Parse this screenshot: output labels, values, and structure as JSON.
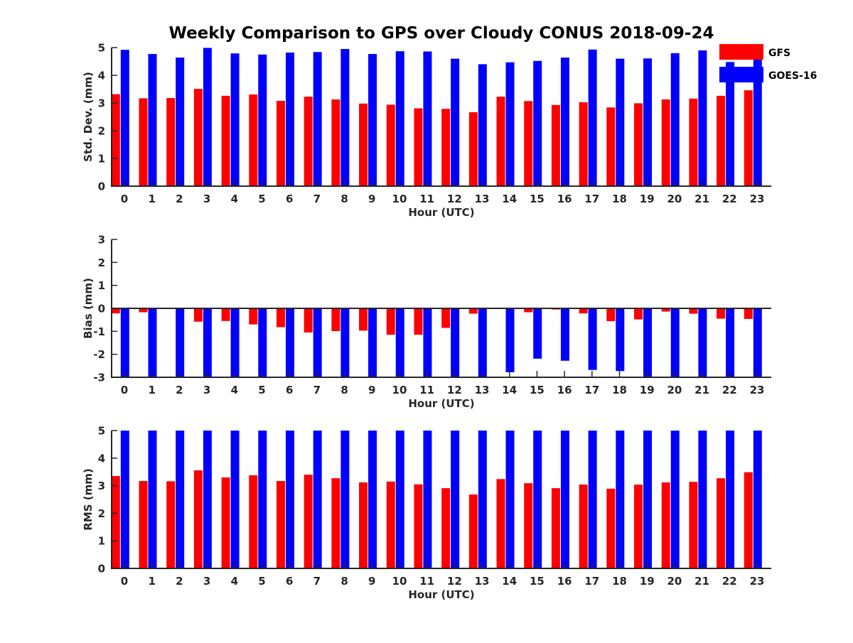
{
  "title": "Weekly Comparison to GPS over Cloudy CONUS 2018-09-24",
  "colors": {
    "gfs": "#ff0000",
    "goes": "#0000ff",
    "axis": "#262626"
  },
  "legend": {
    "placement": "top-right",
    "entries": [
      {
        "name": "GFS",
        "color": "#ff0000"
      },
      {
        "name": "GOES-16",
        "color": "#0000ff"
      }
    ]
  },
  "chart_data": [
    {
      "type": "bar",
      "title": "Weekly Comparison to GPS over Cloudy CONUS 2018-09-24",
      "xlabel": "Hour (UTC)",
      "ylabel": "Std. Dev. (mm)",
      "ylim": [
        0,
        5
      ],
      "yticks": [
        0,
        1,
        2,
        3,
        4,
        5
      ],
      "categories": [
        "0",
        "1",
        "2",
        "3",
        "4",
        "5",
        "6",
        "7",
        "8",
        "9",
        "10",
        "11",
        "12",
        "13",
        "14",
        "15",
        "16",
        "17",
        "18",
        "19",
        "20",
        "21",
        "22",
        "23"
      ],
      "series": [
        {
          "name": "GFS",
          "values": [
            3.32,
            3.17,
            3.18,
            3.51,
            3.26,
            3.31,
            3.08,
            3.23,
            3.13,
            2.98,
            2.94,
            2.81,
            2.79,
            2.67,
            3.23,
            3.07,
            2.93,
            3.03,
            2.84,
            2.99,
            3.13,
            3.16,
            3.26,
            3.46
          ]
        },
        {
          "name": "GOES-16",
          "values": [
            4.92,
            4.77,
            4.64,
            4.99,
            4.79,
            4.75,
            4.82,
            4.84,
            4.95,
            4.77,
            4.87,
            4.86,
            4.6,
            4.4,
            4.47,
            4.52,
            4.64,
            4.93,
            4.6,
            4.61,
            4.8,
            4.9,
            4.48,
            4.7
          ]
        }
      ]
    },
    {
      "type": "bar",
      "xlabel": "Hour (UTC)",
      "ylabel": "Bias (mm)",
      "ylim": [
        -3,
        3
      ],
      "yticks": [
        -3,
        -2,
        -1,
        0,
        1,
        2,
        3
      ],
      "categories": [
        "0",
        "1",
        "2",
        "3",
        "4",
        "5",
        "6",
        "7",
        "8",
        "9",
        "10",
        "11",
        "12",
        "13",
        "14",
        "15",
        "16",
        "17",
        "18",
        "19",
        "20",
        "21",
        "22",
        "23"
      ],
      "series": [
        {
          "name": "GFS",
          "values": [
            -0.22,
            -0.17,
            -0.02,
            -0.58,
            -0.55,
            -0.7,
            -0.82,
            -1.05,
            -0.99,
            -0.97,
            -1.15,
            -1.15,
            -0.85,
            -0.23,
            0.02,
            -0.17,
            -0.05,
            -0.22,
            -0.56,
            -0.48,
            -0.14,
            -0.23,
            -0.45,
            -0.46
          ]
        },
        {
          "name": "GOES-16",
          "values": [
            -3.2,
            -3.2,
            -3.2,
            -3.2,
            -3.2,
            -3.2,
            -3.2,
            -3.2,
            -3.2,
            -3.2,
            -3.2,
            -3.2,
            -3.2,
            -3.2,
            -2.78,
            -2.19,
            -2.28,
            -2.68,
            -2.73,
            -3.2,
            -3.2,
            -3.2,
            -3.2,
            -3.2
          ]
        }
      ]
    },
    {
      "type": "bar",
      "xlabel": "Hour (UTC)",
      "ylabel": "RMS (mm)",
      "ylim": [
        0,
        5
      ],
      "yticks": [
        0,
        1,
        2,
        3,
        4,
        5
      ],
      "categories": [
        "0",
        "1",
        "2",
        "3",
        "4",
        "5",
        "6",
        "7",
        "8",
        "9",
        "10",
        "11",
        "12",
        "13",
        "14",
        "15",
        "16",
        "17",
        "18",
        "19",
        "20",
        "21",
        "22",
        "23"
      ],
      "series": [
        {
          "name": "GFS",
          "values": [
            3.35,
            3.17,
            3.16,
            3.56,
            3.3,
            3.38,
            3.17,
            3.4,
            3.27,
            3.12,
            3.15,
            3.05,
            2.91,
            2.68,
            3.24,
            3.09,
            2.91,
            3.04,
            2.89,
            3.04,
            3.12,
            3.14,
            3.27,
            3.49
          ]
        },
        {
          "name": "GOES-16",
          "values": [
            5.5,
            5.5,
            5.5,
            5.5,
            5.5,
            5.5,
            5.5,
            5.5,
            5.5,
            5.5,
            5.5,
            5.5,
            5.5,
            5.5,
            5.5,
            5.5,
            5.5,
            5.5,
            5.5,
            5.5,
            5.5,
            5.5,
            5.5,
            5.5
          ]
        }
      ]
    }
  ]
}
